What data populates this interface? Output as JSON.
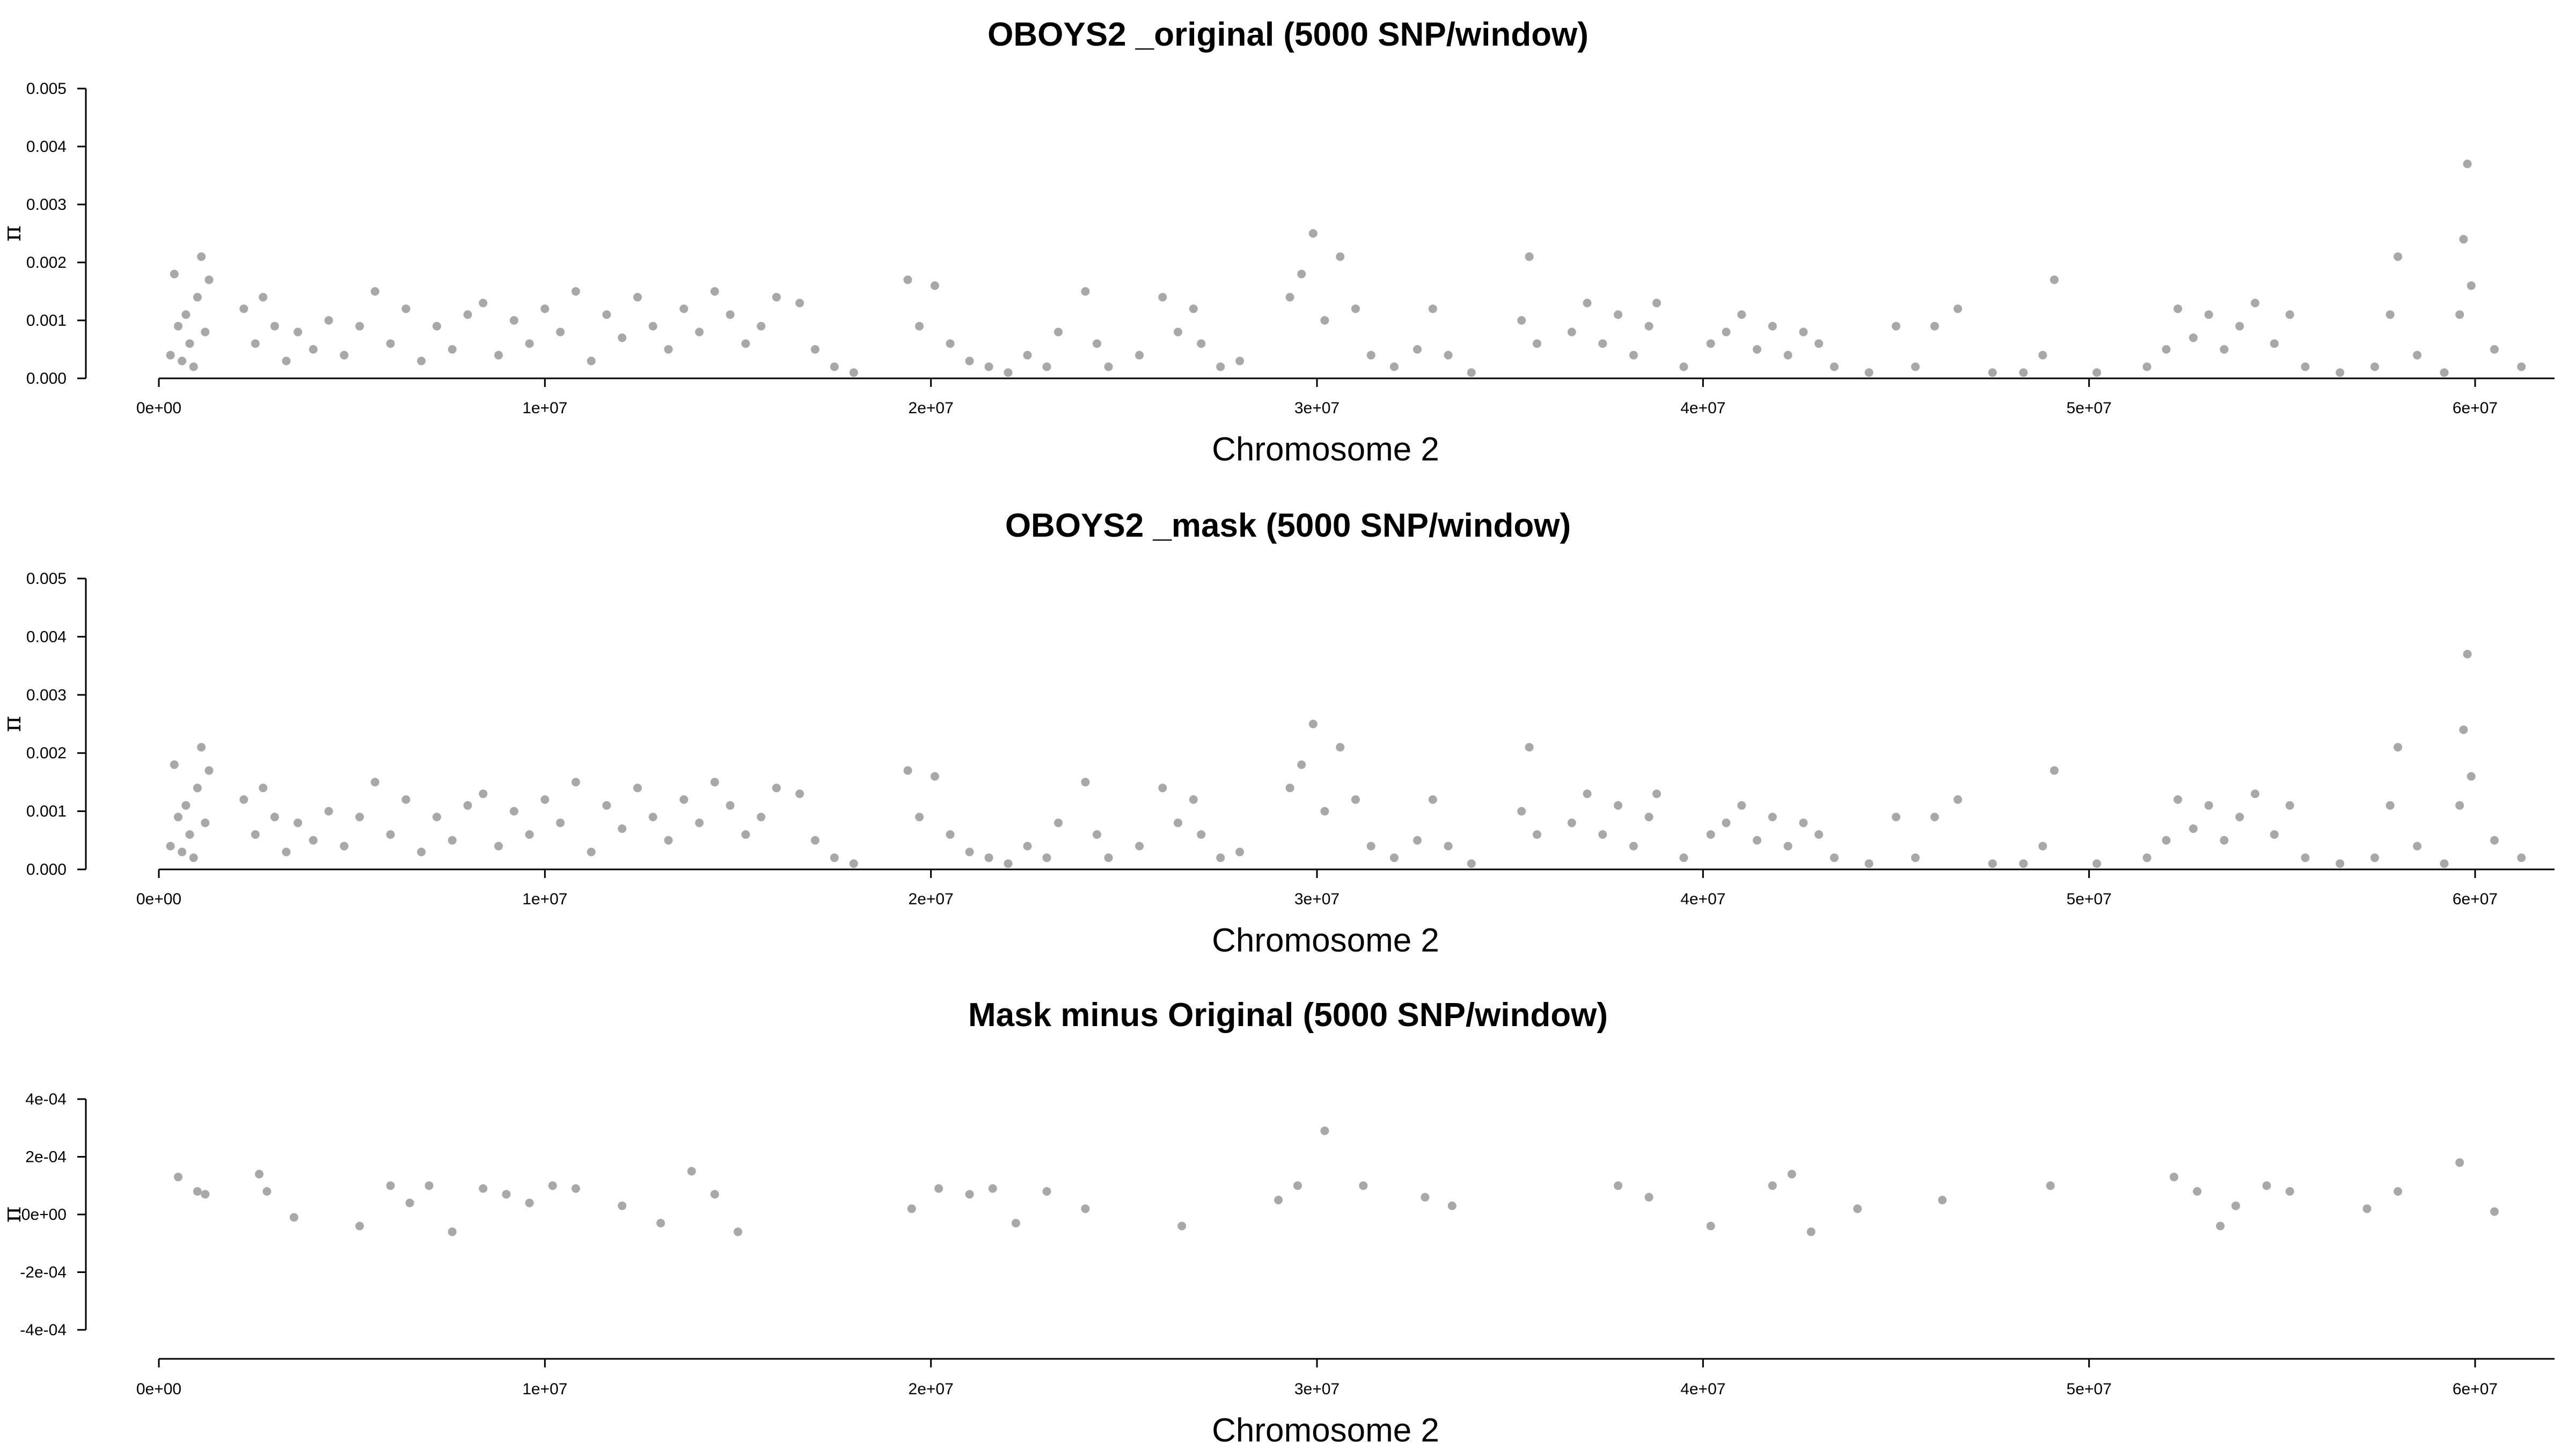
{
  "chart_data": [
    {
      "type": "scatter",
      "title": "OBOYS2 _original (5000 SNP/window)",
      "xlabel": "Chromosome 2",
      "ylabel": "π",
      "xlim": [
        0,
        60000000
      ],
      "ylim": [
        0,
        0.005
      ],
      "xticks": [
        0,
        10000000,
        20000000,
        30000000,
        40000000,
        50000000,
        60000000
      ],
      "xtick_labels": [
        "0e+00",
        "1e+07",
        "2e+07",
        "3e+07",
        "4e+07",
        "5e+07",
        "6e+07"
      ],
      "yticks": [
        0,
        0.001,
        0.002,
        0.003,
        0.004,
        0.005
      ],
      "ytick_labels": [
        "0.000",
        "0.001",
        "0.002",
        "0.003",
        "0.004",
        "0.005"
      ],
      "grid": false,
      "color": "#a8a8a8",
      "series": [
        {
          "x": [
            300000,
            400000,
            500000,
            600000,
            700000,
            800000,
            900000,
            1000000,
            1100000,
            1200000,
            1300000,
            2200000,
            2500000,
            2700000,
            3000000,
            3300000,
            3600000,
            4000000,
            4400000,
            4800000,
            5200000,
            5600000,
            6000000,
            6400000,
            6800000,
            7200000,
            7600000,
            8000000,
            8400000,
            8800000,
            9200000,
            9600000,
            10000000,
            10400000,
            10800000,
            11200000,
            11600000,
            12000000,
            12400000,
            12800000,
            13200000,
            13600000,
            14000000,
            14400000,
            14800000,
            15200000,
            15600000,
            16000000,
            16600000,
            17000000,
            17500000,
            18000000,
            19400000,
            19700000,
            20100000,
            20500000,
            21000000,
            21500000,
            22000000,
            22500000,
            23000000,
            23300000,
            24000000,
            24300000,
            24600000,
            25400000,
            26000000,
            26400000,
            26800000,
            27000000,
            27500000,
            28000000,
            29300000,
            29600000,
            29900000,
            30200000,
            30600000,
            31000000,
            31400000,
            32000000,
            32600000,
            33000000,
            33400000,
            34000000,
            35300000,
            35500000,
            35700000,
            36600000,
            37000000,
            37400000,
            37800000,
            38200000,
            38600000,
            38800000,
            39500000,
            40200000,
            40600000,
            41000000,
            41400000,
            41800000,
            42200000,
            42600000,
            43000000,
            43400000,
            44300000,
            45000000,
            45500000,
            46000000,
            46600000,
            47500000,
            48300000,
            48800000,
            49100000,
            50200000,
            51500000,
            52000000,
            52300000,
            52700000,
            53100000,
            53500000,
            53900000,
            54300000,
            54800000,
            55200000,
            55600000,
            56500000,
            57400000,
            57800000,
            58000000,
            58500000,
            59200000,
            59600000,
            59700000,
            59800000,
            59900000,
            60500000,
            61200000
          ],
          "y": [
            0.0004,
            0.0018,
            0.0009,
            0.0003,
            0.0011,
            0.0006,
            0.0002,
            0.0014,
            0.0021,
            0.0008,
            0.0017,
            0.0012,
            0.0006,
            0.0014,
            0.0009,
            0.0003,
            0.0008,
            0.0005,
            0.001,
            0.0004,
            0.0009,
            0.0015,
            0.0006,
            0.0012,
            0.0003,
            0.0009,
            0.0005,
            0.0011,
            0.0013,
            0.0004,
            0.001,
            0.0006,
            0.0012,
            0.0008,
            0.0015,
            0.0003,
            0.0011,
            0.0007,
            0.0014,
            0.0009,
            0.0005,
            0.0012,
            0.0008,
            0.0015,
            0.0011,
            0.0006,
            0.0009,
            0.0014,
            0.0013,
            0.0005,
            0.0002,
            0.0001,
            0.0017,
            0.0009,
            0.0016,
            0.0006,
            0.0003,
            0.0002,
            0.0001,
            0.0004,
            0.0002,
            0.0008,
            0.0015,
            0.0006,
            0.0002,
            0.0004,
            0.0014,
            0.0008,
            0.0012,
            0.0006,
            0.0002,
            0.0003,
            0.0014,
            0.0018,
            0.0025,
            0.001,
            0.0021,
            0.0012,
            0.0004,
            0.0002,
            0.0005,
            0.0012,
            0.0004,
            0.0001,
            0.001,
            0.0021,
            0.0006,
            0.0008,
            0.0013,
            0.0006,
            0.0011,
            0.0004,
            0.0009,
            0.0013,
            0.0002,
            0.0006,
            0.0008,
            0.0011,
            0.0005,
            0.0009,
            0.0004,
            0.0008,
            0.0006,
            0.0002,
            0.0001,
            0.0009,
            0.0002,
            0.0009,
            0.0012,
            0.0001,
            0.0001,
            0.0004,
            0.0017,
            0.0001,
            0.0002,
            0.0005,
            0.0012,
            0.0007,
            0.0011,
            0.0005,
            0.0009,
            0.0013,
            0.0006,
            0.0011,
            0.0002,
            0.0001,
            0.0002,
            0.0011,
            0.0021,
            0.0004,
            0.0001,
            0.0011,
            0.0024,
            0.0037,
            0.0016,
            0.0005,
            0.0002
          ]
        }
      ]
    },
    {
      "type": "scatter",
      "title": "OBOYS2 _mask (5000 SNP/window)",
      "xlabel": "Chromosome 2",
      "ylabel": "π",
      "xlim": [
        0,
        60000000
      ],
      "ylim": [
        0,
        0.005
      ],
      "xticks": [
        0,
        10000000,
        20000000,
        30000000,
        40000000,
        50000000,
        60000000
      ],
      "xtick_labels": [
        "0e+00",
        "1e+07",
        "2e+07",
        "3e+07",
        "4e+07",
        "5e+07",
        "6e+07"
      ],
      "yticks": [
        0,
        0.001,
        0.002,
        0.003,
        0.004,
        0.005
      ],
      "ytick_labels": [
        "0.000",
        "0.001",
        "0.002",
        "0.003",
        "0.004",
        "0.005"
      ],
      "grid": false,
      "color": "#a8a8a8",
      "series": [
        {
          "x": [
            300000,
            400000,
            500000,
            600000,
            700000,
            800000,
            900000,
            1000000,
            1100000,
            1200000,
            1300000,
            2200000,
            2500000,
            2700000,
            3000000,
            3300000,
            3600000,
            4000000,
            4400000,
            4800000,
            5200000,
            5600000,
            6000000,
            6400000,
            6800000,
            7200000,
            7600000,
            8000000,
            8400000,
            8800000,
            9200000,
            9600000,
            10000000,
            10400000,
            10800000,
            11200000,
            11600000,
            12000000,
            12400000,
            12800000,
            13200000,
            13600000,
            14000000,
            14400000,
            14800000,
            15200000,
            15600000,
            16000000,
            16600000,
            17000000,
            17500000,
            18000000,
            19400000,
            19700000,
            20100000,
            20500000,
            21000000,
            21500000,
            22000000,
            22500000,
            23000000,
            23300000,
            24000000,
            24300000,
            24600000,
            25400000,
            26000000,
            26400000,
            26800000,
            27000000,
            27500000,
            28000000,
            29300000,
            29600000,
            29900000,
            30200000,
            30600000,
            31000000,
            31400000,
            32000000,
            32600000,
            33000000,
            33400000,
            34000000,
            35300000,
            35500000,
            35700000,
            36600000,
            37000000,
            37400000,
            37800000,
            38200000,
            38600000,
            38800000,
            39500000,
            40200000,
            40600000,
            41000000,
            41400000,
            41800000,
            42200000,
            42600000,
            43000000,
            43400000,
            44300000,
            45000000,
            45500000,
            46000000,
            46600000,
            47500000,
            48300000,
            48800000,
            49100000,
            50200000,
            51500000,
            52000000,
            52300000,
            52700000,
            53100000,
            53500000,
            53900000,
            54300000,
            54800000,
            55200000,
            55600000,
            56500000,
            57400000,
            57800000,
            58000000,
            58500000,
            59200000,
            59600000,
            59700000,
            59800000,
            59900000,
            60500000,
            61200000
          ],
          "y": [
            0.0004,
            0.0018,
            0.0009,
            0.0003,
            0.0011,
            0.0006,
            0.0002,
            0.0014,
            0.0021,
            0.0008,
            0.0017,
            0.0012,
            0.0006,
            0.0014,
            0.0009,
            0.0003,
            0.0008,
            0.0005,
            0.001,
            0.0004,
            0.0009,
            0.0015,
            0.0006,
            0.0012,
            0.0003,
            0.0009,
            0.0005,
            0.0011,
            0.0013,
            0.0004,
            0.001,
            0.0006,
            0.0012,
            0.0008,
            0.0015,
            0.0003,
            0.0011,
            0.0007,
            0.0014,
            0.0009,
            0.0005,
            0.0012,
            0.0008,
            0.0015,
            0.0011,
            0.0006,
            0.0009,
            0.0014,
            0.0013,
            0.0005,
            0.0002,
            0.0001,
            0.0017,
            0.0009,
            0.0016,
            0.0006,
            0.0003,
            0.0002,
            0.0001,
            0.0004,
            0.0002,
            0.0008,
            0.0015,
            0.0006,
            0.0002,
            0.0004,
            0.0014,
            0.0008,
            0.0012,
            0.0006,
            0.0002,
            0.0003,
            0.0014,
            0.0018,
            0.0025,
            0.001,
            0.0021,
            0.0012,
            0.0004,
            0.0002,
            0.0005,
            0.0012,
            0.0004,
            0.0001,
            0.001,
            0.0021,
            0.0006,
            0.0008,
            0.0013,
            0.0006,
            0.0011,
            0.0004,
            0.0009,
            0.0013,
            0.0002,
            0.0006,
            0.0008,
            0.0011,
            0.0005,
            0.0009,
            0.0004,
            0.0008,
            0.0006,
            0.0002,
            0.0001,
            0.0009,
            0.0002,
            0.0009,
            0.0012,
            0.0001,
            0.0001,
            0.0004,
            0.0017,
            0.0001,
            0.0002,
            0.0005,
            0.0012,
            0.0007,
            0.0011,
            0.0005,
            0.0009,
            0.0013,
            0.0006,
            0.0011,
            0.0002,
            0.0001,
            0.0002,
            0.0011,
            0.0021,
            0.0004,
            0.0001,
            0.0011,
            0.0024,
            0.0037,
            0.0016,
            0.0005,
            0.0002
          ]
        }
      ]
    },
    {
      "type": "scatter",
      "title": "Mask minus Original (5000 SNP/window)",
      "xlabel": "Chromosome 2",
      "ylabel": "π",
      "xlim": [
        0,
        60000000
      ],
      "ylim": [
        -0.0004,
        0.0004
      ],
      "xticks": [
        0,
        10000000,
        20000000,
        30000000,
        40000000,
        50000000,
        60000000
      ],
      "xtick_labels": [
        "0e+00",
        "1e+07",
        "2e+07",
        "3e+07",
        "4e+07",
        "5e+07",
        "6e+07"
      ],
      "yticks": [
        -0.0004,
        -0.0002,
        0,
        0.0002,
        0.0004
      ],
      "ytick_labels": [
        "-4e-04",
        "-2e-04",
        "0e+00",
        "2e-04",
        "4e-04"
      ],
      "grid": false,
      "color": "#a8a8a8",
      "series": [
        {
          "x": [
            500000,
            1000000,
            1200000,
            2600000,
            2800000,
            3500000,
            5200000,
            6000000,
            6500000,
            7000000,
            7600000,
            8400000,
            9000000,
            9600000,
            10200000,
            10800000,
            12000000,
            13000000,
            13800000,
            14400000,
            15000000,
            19500000,
            20200000,
            21000000,
            21600000,
            22200000,
            23000000,
            24000000,
            26500000,
            29000000,
            29500000,
            30200000,
            31200000,
            32800000,
            33500000,
            37800000,
            38600000,
            40200000,
            41800000,
            42300000,
            42800000,
            44000000,
            46200000,
            49000000,
            52200000,
            52800000,
            53400000,
            53800000,
            54600000,
            55200000,
            57200000,
            58000000,
            59600000,
            60500000
          ],
          "y": [
            0.00013,
            8e-05,
            7e-05,
            0.00014,
            8e-05,
            -1e-05,
            -4e-05,
            0.0001,
            4e-05,
            0.0001,
            -6e-05,
            9e-05,
            7e-05,
            4e-05,
            0.0001,
            9e-05,
            3e-05,
            -3e-05,
            0.00015,
            7e-05,
            -6e-05,
            2e-05,
            9e-05,
            7e-05,
            9e-05,
            -3e-05,
            8e-05,
            2e-05,
            -4e-05,
            5e-05,
            0.0001,
            0.00029,
            0.0001,
            6e-05,
            3e-05,
            0.0001,
            6e-05,
            -4e-05,
            0.0001,
            0.00014,
            -6e-05,
            2e-05,
            5e-05,
            0.0001,
            0.00013,
            8e-05,
            -4e-05,
            3e-05,
            0.0001,
            8e-05,
            2e-05,
            8e-05,
            0.00018,
            1e-05
          ]
        }
      ]
    }
  ]
}
